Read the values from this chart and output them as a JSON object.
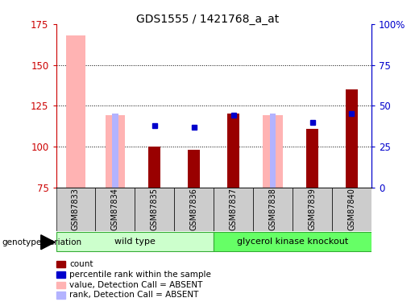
{
  "title": "GDS1555 / 1421768_a_at",
  "samples": [
    "GSM87833",
    "GSM87834",
    "GSM87835",
    "GSM87836",
    "GSM87837",
    "GSM87838",
    "GSM87839",
    "GSM87840"
  ],
  "count_values": [
    null,
    null,
    100,
    98,
    120,
    null,
    111,
    135
  ],
  "pink_bar_values": [
    168,
    119,
    null,
    null,
    null,
    119,
    null,
    null
  ],
  "blue_square_values": [
    null,
    null,
    113,
    112,
    119,
    null,
    115,
    120
  ],
  "light_blue_bar_values": [
    null,
    45,
    null,
    null,
    null,
    45,
    null,
    null
  ],
  "ylim": [
    75,
    175
  ],
  "y_ticks": [
    75,
    100,
    125,
    150,
    175
  ],
  "y2_ticks": [
    0,
    25,
    50,
    75,
    100
  ],
  "y2_tick_labels": [
    "0",
    "25",
    "50",
    "75",
    "100%"
  ],
  "group1_label": "wild type",
  "group2_label": "glycerol kinase knockout",
  "genotype_label": "genotype/variation",
  "legend_items": [
    "count",
    "percentile rank within the sample",
    "value, Detection Call = ABSENT",
    "rank, Detection Call = ABSENT"
  ],
  "colors": {
    "count": "#990000",
    "percentile_rank": "#0000cc",
    "pink_bar": "#ffb3b3",
    "light_blue_bar": "#b3b3ff",
    "group1_bg": "#ccffcc",
    "group2_bg": "#66ff66",
    "tick_label_left": "#cc0000",
    "tick_label_right": "#0000cc",
    "sample_bg": "#cccccc",
    "plot_bg": "#ffffff"
  }
}
